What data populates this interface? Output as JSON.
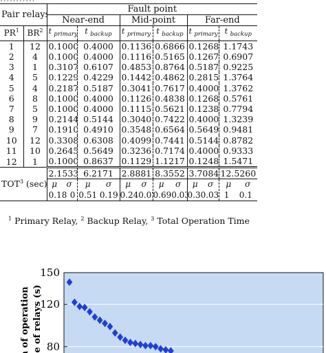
{
  "cut_line": "...........",
  "table": {
    "header": {
      "pair_relays": "Pair relays",
      "fault_point": "Fault point",
      "groups": [
        "Near-end",
        "Mid-point",
        "Far-end"
      ],
      "pr_label": "PR",
      "pr_sup": "1",
      "br_label": "BR",
      "br_sup": "2",
      "t_symbol": "t",
      "t_primary": "primary",
      "t_backup": "backup"
    },
    "rows": [
      {
        "pr": "1",
        "br": "12",
        "v": [
          "0.1000",
          "0.4000",
          "0.1136",
          "0.6866",
          "0.1268",
          "1.1743"
        ]
      },
      {
        "pr": "2",
        "br": "4",
        "v": [
          "0.1000",
          "0.4000",
          "0.1116",
          "0.5165",
          "0.1267",
          "0.6907"
        ]
      },
      {
        "pr": "3",
        "br": "1",
        "v": [
          "0.3107",
          "0.6107",
          "0.4853",
          "0.8764",
          "0.5187",
          "0.9225"
        ]
      },
      {
        "pr": "4",
        "br": "5",
        "v": [
          "0.1229",
          "0.4229",
          "0.1442",
          "0.4862",
          "0.2815",
          "1.3764"
        ]
      },
      {
        "pr": "5",
        "br": "4",
        "v": [
          "0.2187",
          "0.5187",
          "0.3041",
          "0.7617",
          "0.4000",
          "1.3762"
        ]
      },
      {
        "pr": "6",
        "br": "8",
        "v": [
          "0.1000",
          "0.4000",
          "0.1126",
          "0.4838",
          "0.1268",
          "0.5761"
        ]
      },
      {
        "pr": "7",
        "br": "5",
        "v": [
          "0.1000",
          "0.4000",
          "0.1115",
          "0.5621",
          "0.1238",
          "0.7794"
        ]
      },
      {
        "pr": "8",
        "br": "9",
        "v": [
          "0.2144",
          "0.5144",
          "0.3040",
          "0.7422",
          "0.4000",
          "1.3239"
        ]
      },
      {
        "pr": "9",
        "br": "7",
        "v": [
          "0.1910",
          "0.4910",
          "0.3548",
          "0.6564",
          "0.5649",
          "0.9481"
        ]
      },
      {
        "pr": "10",
        "br": "12",
        "v": [
          "0.3308",
          "0.6308",
          "0.4099",
          "0.7441",
          "0.5144",
          "0.8782"
        ]
      },
      {
        "pr": "11",
        "br": "10",
        "v": [
          "0.2645",
          "0.5649",
          "0.3236",
          "0.7174",
          "0.4000",
          "0.9333"
        ]
      },
      {
        "pr": "12",
        "br": "1",
        "v": [
          "0.1000",
          "0.8637",
          "0.1129",
          "1.1217",
          "0.1248",
          "1.5471"
        ]
      }
    ],
    "tot": {
      "label": "TOT",
      "sup": "3",
      "unit": "(sec)",
      "values": [
        "2.1533",
        "6.2171",
        "2.8881",
        "8.3552",
        "3.7084",
        "12.5260"
      ],
      "mu": "μ",
      "sigma": "σ",
      "stats": [
        [
          "0.18",
          "0"
        ],
        [
          "0.51",
          "0.19"
        ],
        [
          "0.24",
          "0.02"
        ],
        [
          "0.69",
          "0.03"
        ],
        [
          "0.3",
          "0.03"
        ],
        [
          "1",
          "0.1"
        ]
      ]
    }
  },
  "footnote": {
    "sup1": "1",
    "text1": " Primary Relay, ",
    "sup2": "2",
    "text2": " Backup Relay, ",
    "sup3": "3",
    "text3": " Total Operation Time"
  },
  "chart_data": {
    "type": "scatter",
    "ylabel_line1": "m of operation",
    "ylabel_line2": "me of relays (s)",
    "y_ticks": [
      150,
      120,
      80
    ],
    "ylim": [
      74,
      150
    ],
    "grid": true,
    "marker": "diamond",
    "marker_color": "#1f3fd6",
    "background_color": "#c6daf3",
    "points": [
      {
        "x": 1,
        "y": 141
      },
      {
        "x": 2,
        "y": 122
      },
      {
        "x": 3,
        "y": 118
      },
      {
        "x": 4,
        "y": 117
      },
      {
        "x": 5,
        "y": 113
      },
      {
        "x": 6,
        "y": 108
      },
      {
        "x": 7,
        "y": 105
      },
      {
        "x": 8,
        "y": 102
      },
      {
        "x": 9,
        "y": 99
      },
      {
        "x": 10,
        "y": 93
      },
      {
        "x": 11,
        "y": 89
      },
      {
        "x": 12,
        "y": 86
      },
      {
        "x": 13,
        "y": 84
      },
      {
        "x": 14,
        "y": 83
      },
      {
        "x": 15,
        "y": 82
      },
      {
        "x": 16,
        "y": 81
      },
      {
        "x": 17,
        "y": 81
      },
      {
        "x": 18,
        "y": 80
      },
      {
        "x": 19,
        "y": 78
      },
      {
        "x": 20,
        "y": 77
      },
      {
        "x": 21,
        "y": 76
      }
    ],
    "x_max": 50
  }
}
